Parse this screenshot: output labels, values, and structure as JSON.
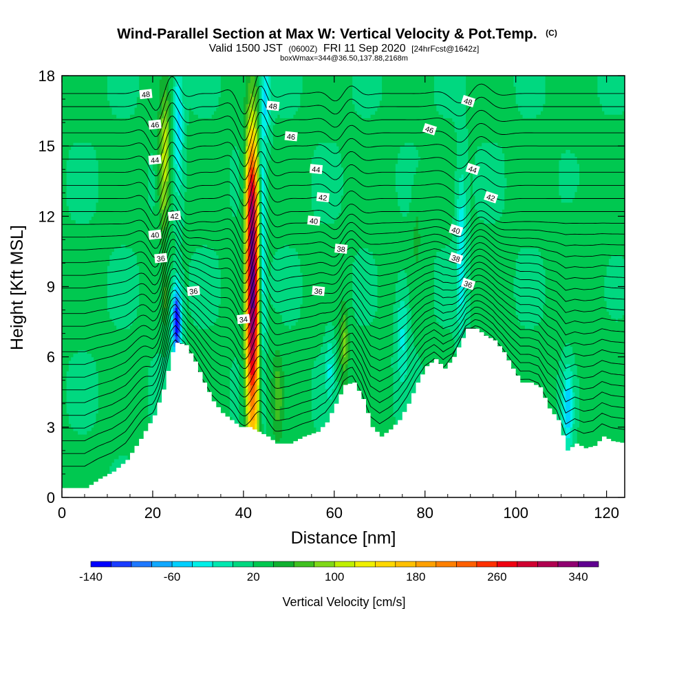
{
  "chart_data": {
    "type": "heatmap",
    "title": "Wind-Parallel Section at Max W: Vertical Velocity & Pot.Temp.",
    "title_mark": "(C)",
    "subtitle_parts": [
      "Valid 1500 JST",
      "(0600Z)",
      "FRI 11 Sep 2020",
      "[24hrFcst@1642z]"
    ],
    "subtitle2": "boxWmax=344@36.50,137.88,2168m",
    "xlabel": "Distance [nm]",
    "ylabel": "Height [Kft MSL]",
    "xlim": [
      0,
      124
    ],
    "ylim": [
      0,
      18
    ],
    "xticks": [
      "0",
      "20",
      "40",
      "60",
      "80",
      "100",
      "120"
    ],
    "xtick_values": [
      0,
      20,
      40,
      60,
      80,
      100,
      120
    ],
    "yticks": [
      "0",
      "3",
      "6",
      "9",
      "12",
      "15",
      "18"
    ],
    "ytick_values": [
      0,
      3,
      6,
      9,
      12,
      15,
      18
    ],
    "colorbar": {
      "label": "Vertical Velocity [cm/s]",
      "ticks": [
        "-140",
        "-60",
        "20",
        "100",
        "180",
        "260",
        "340"
      ],
      "tick_values": [
        -140,
        -60,
        20,
        100,
        180,
        260,
        340
      ],
      "levels": [
        -140,
        -120,
        -100,
        -80,
        -60,
        -40,
        -20,
        0,
        20,
        40,
        60,
        80,
        100,
        120,
        140,
        160,
        180,
        200,
        220,
        240,
        260,
        280,
        300,
        320,
        340,
        360
      ],
      "colors": [
        "#0000ff",
        "#1a3cff",
        "#1e78ff",
        "#10a8ff",
        "#00d0ff",
        "#00f0e8",
        "#00e8b0",
        "#00d880",
        "#00c850",
        "#10b030",
        "#40c020",
        "#80d818",
        "#c0f000",
        "#f0f000",
        "#ffd800",
        "#ffc000",
        "#ffa000",
        "#ff8000",
        "#ff6000",
        "#ff3000",
        "#f00010",
        "#d00030",
        "#b00050",
        "#900070",
        "#600090"
      ]
    },
    "terrain": [
      {
        "x": 0,
        "h": 0.4
      },
      {
        "x": 5,
        "h": 0.4
      },
      {
        "x": 8,
        "h": 0.8
      },
      {
        "x": 11,
        "h": 1.1
      },
      {
        "x": 14,
        "h": 1.6
      },
      {
        "x": 17,
        "h": 2.5
      },
      {
        "x": 20,
        "h": 3.5
      },
      {
        "x": 22,
        "h": 4.6
      },
      {
        "x": 24,
        "h": 6.2
      },
      {
        "x": 25,
        "h": 6.6
      },
      {
        "x": 27,
        "h": 6.5
      },
      {
        "x": 29,
        "h": 5.8
      },
      {
        "x": 31,
        "h": 4.9
      },
      {
        "x": 33,
        "h": 4.1
      },
      {
        "x": 35,
        "h": 3.6
      },
      {
        "x": 37,
        "h": 3.3
      },
      {
        "x": 39,
        "h": 3.0
      },
      {
        "x": 41,
        "h": 3.0
      },
      {
        "x": 43,
        "h": 2.8
      },
      {
        "x": 45,
        "h": 2.6
      },
      {
        "x": 47,
        "h": 2.3
      },
      {
        "x": 50,
        "h": 2.3
      },
      {
        "x": 53,
        "h": 2.6
      },
      {
        "x": 56,
        "h": 2.8
      },
      {
        "x": 58,
        "h": 3.2
      },
      {
        "x": 60,
        "h": 4.0
      },
      {
        "x": 62,
        "h": 4.8
      },
      {
        "x": 64,
        "h": 4.9
      },
      {
        "x": 66,
        "h": 4.2
      },
      {
        "x": 68,
        "h": 3.0
      },
      {
        "x": 70,
        "h": 2.6
      },
      {
        "x": 72,
        "h": 2.9
      },
      {
        "x": 74,
        "h": 3.3
      },
      {
        "x": 76,
        "h": 4.0
      },
      {
        "x": 78,
        "h": 4.9
      },
      {
        "x": 80,
        "h": 5.6
      },
      {
        "x": 82,
        "h": 5.9
      },
      {
        "x": 84,
        "h": 5.5
      },
      {
        "x": 86,
        "h": 6.0
      },
      {
        "x": 88,
        "h": 6.8
      },
      {
        "x": 89,
        "h": 7.2
      },
      {
        "x": 91,
        "h": 7.2
      },
      {
        "x": 93,
        "h": 6.9
      },
      {
        "x": 95,
        "h": 6.7
      },
      {
        "x": 97,
        "h": 6.2
      },
      {
        "x": 99,
        "h": 5.5
      },
      {
        "x": 101,
        "h": 4.9
      },
      {
        "x": 103,
        "h": 4.9
      },
      {
        "x": 105,
        "h": 4.7
      },
      {
        "x": 107,
        "h": 3.8
      },
      {
        "x": 109,
        "h": 3.3
      },
      {
        "x": 111,
        "h": 2.0
      },
      {
        "x": 113,
        "h": 2.3
      },
      {
        "x": 115,
        "h": 2.1
      },
      {
        "x": 117,
        "h": 2.2
      },
      {
        "x": 119,
        "h": 2.6
      },
      {
        "x": 121,
        "h": 2.4
      },
      {
        "x": 124,
        "h": 2.3
      }
    ],
    "updrafts": [
      {
        "x": 42,
        "z": 8.5,
        "sx": 1.0,
        "sz": 4.5,
        "w": 345
      },
      {
        "x": 41.6,
        "z": 13.0,
        "sx": 0.8,
        "sz": 1.8,
        "w": 120
      },
      {
        "x": 22.7,
        "z": 14.8,
        "sx": 0.9,
        "sz": 1.8,
        "w": 110
      },
      {
        "x": 22.3,
        "z": 12.3,
        "sx": 0.7,
        "sz": 1.2,
        "w": 55
      },
      {
        "x": 22.7,
        "z": 8.5,
        "sx": 0.5,
        "sz": 0.9,
        "w": 60
      },
      {
        "x": 47.5,
        "z": 4.3,
        "sx": 0.9,
        "sz": 1.4,
        "w": 70
      },
      {
        "x": 62.2,
        "z": 6.5,
        "sx": 0.7,
        "sz": 1.2,
        "w": 85
      },
      {
        "x": 78.2,
        "z": 11.3,
        "sx": 0.8,
        "sz": 1.3,
        "w": 45
      },
      {
        "x": 72.0,
        "z": 9.5,
        "sx": 2.5,
        "sz": 4.0,
        "w": 25
      },
      {
        "x": 115,
        "z": 9.0,
        "sx": 4.0,
        "sz": 4.0,
        "w": 28
      }
    ],
    "downdrafts": [
      {
        "x": 25.3,
        "z": 7.5,
        "sx": 0.7,
        "sz": 1.1,
        "w": -145
      },
      {
        "x": 25.6,
        "z": 16.0,
        "sx": 0.8,
        "sz": 2.0,
        "w": -45
      },
      {
        "x": 44.2,
        "z": 10.5,
        "sx": 0.5,
        "sz": 4.0,
        "w": -55
      },
      {
        "x": 45.0,
        "z": 17.0,
        "sx": 0.7,
        "sz": 1.2,
        "w": -40
      },
      {
        "x": 88.0,
        "z": 10.5,
        "sx": 0.8,
        "sz": 2.5,
        "w": -40
      },
      {
        "x": 111.5,
        "z": 3.8,
        "sx": 0.8,
        "sz": 1.2,
        "w": -55
      },
      {
        "x": 75.0,
        "z": 7.0,
        "sx": 1.0,
        "sz": 1.5,
        "w": -25
      },
      {
        "x": 59.0,
        "z": 5.5,
        "sx": 0.7,
        "sz": 1.0,
        "w": -20
      }
    ],
    "contour_levels": {
      "start": 1.0,
      "step": 0.56,
      "count": 30,
      "wave": [
        {
          "x": 22.5,
          "amp": 0.9,
          "width": 3.0
        },
        {
          "x": 42.0,
          "amp": 1.1,
          "width": 3.0
        },
        {
          "x": 62.0,
          "amp": 0.4,
          "width": 3.0
        },
        {
          "x": 90.0,
          "amp": 0.5,
          "width": 4.0
        }
      ]
    },
    "contour_labels": [
      {
        "text": "48",
        "x": 18.5,
        "z": 17.2
      },
      {
        "text": "48",
        "x": 46.5,
        "z": 16.7
      },
      {
        "text": "48",
        "x": 89.5,
        "z": 16.9
      },
      {
        "text": "46",
        "x": 20.5,
        "z": 15.9
      },
      {
        "text": "46",
        "x": 50.5,
        "z": 15.4
      },
      {
        "text": "46",
        "x": 81.0,
        "z": 15.7
      },
      {
        "text": "44",
        "x": 20.5,
        "z": 14.4
      },
      {
        "text": "44",
        "x": 56.0,
        "z": 14.0
      },
      {
        "text": "44",
        "x": 90.5,
        "z": 14.0
      },
      {
        "text": "42",
        "x": 24.8,
        "z": 12.0
      },
      {
        "text": "42",
        "x": 57.5,
        "z": 12.8
      },
      {
        "text": "42",
        "x": 94.5,
        "z": 12.8
      },
      {
        "text": "40",
        "x": 20.5,
        "z": 11.2
      },
      {
        "text": "40",
        "x": 55.5,
        "z": 11.8
      },
      {
        "text": "40",
        "x": 86.8,
        "z": 11.4
      },
      {
        "text": "36",
        "x": 21.8,
        "z": 10.2
      },
      {
        "text": "38",
        "x": 61.5,
        "z": 10.6
      },
      {
        "text": "38",
        "x": 86.8,
        "z": 10.2
      },
      {
        "text": "36",
        "x": 29.0,
        "z": 8.8
      },
      {
        "text": "36",
        "x": 56.5,
        "z": 8.8
      },
      {
        "text": "36",
        "x": 89.5,
        "z": 9.1
      },
      {
        "text": "34",
        "x": 40.0,
        "z": 7.6
      }
    ]
  }
}
